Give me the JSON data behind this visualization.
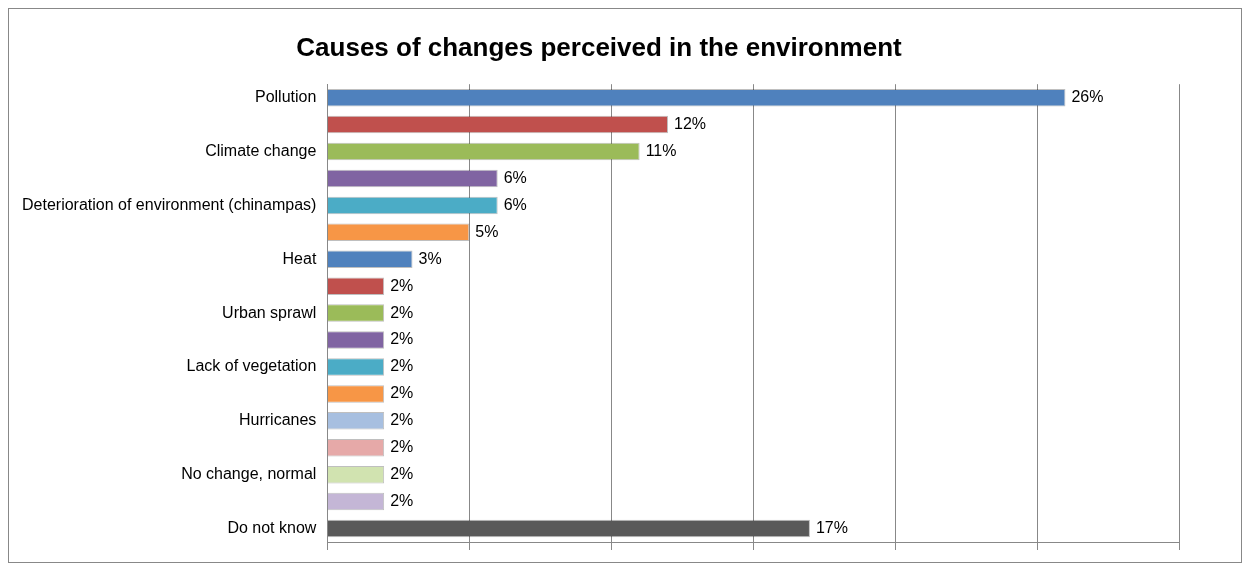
{
  "chart_data": {
    "type": "bar",
    "orientation": "horizontal",
    "title": "Causes of changes perceived in the environment",
    "categories": [
      "Pollution",
      null,
      "Climate change",
      null,
      "Deterioration of environment (chinampas)",
      null,
      "Heat",
      null,
      "Urban sprawl",
      null,
      "Lack of vegetation",
      null,
      "Hurricanes",
      null,
      "No change, normal",
      null,
      "Do not know"
    ],
    "values": [
      26,
      12,
      11,
      6,
      6,
      5,
      3,
      2,
      2,
      2,
      2,
      2,
      2,
      2,
      2,
      2,
      17
    ],
    "value_labels": [
      "26%",
      "12%",
      "11%",
      "6%",
      "6%",
      "5%",
      "3%",
      "2%",
      "2%",
      "2%",
      "2%",
      "2%",
      "2%",
      "2%",
      "2%",
      "2%",
      "17%"
    ],
    "colors": [
      "#4f81bd",
      "#c0504d",
      "#9bbb59",
      "#8064a2",
      "#4bacc6",
      "#f79646",
      "#4f81bd",
      "#c0504d",
      "#9bbb59",
      "#8064a2",
      "#4bacc6",
      "#f79646",
      "#a7bfe0",
      "#e6a9a8",
      "#d1e3b0",
      "#c4b6d6",
      "#595959"
    ],
    "xlim": [
      0,
      30
    ],
    "xticks": [
      {
        "value": 0,
        "label": null
      },
      {
        "value": 5,
        "label": null
      },
      {
        "value": 10,
        "label": null
      },
      {
        "value": 15,
        "label": null
      },
      {
        "value": 20,
        "label": null
      },
      {
        "value": 25,
        "label": null
      },
      {
        "value": 30,
        "label": null
      }
    ],
    "grid": "x",
    "legend": false,
    "tick_labels": "y"
  }
}
